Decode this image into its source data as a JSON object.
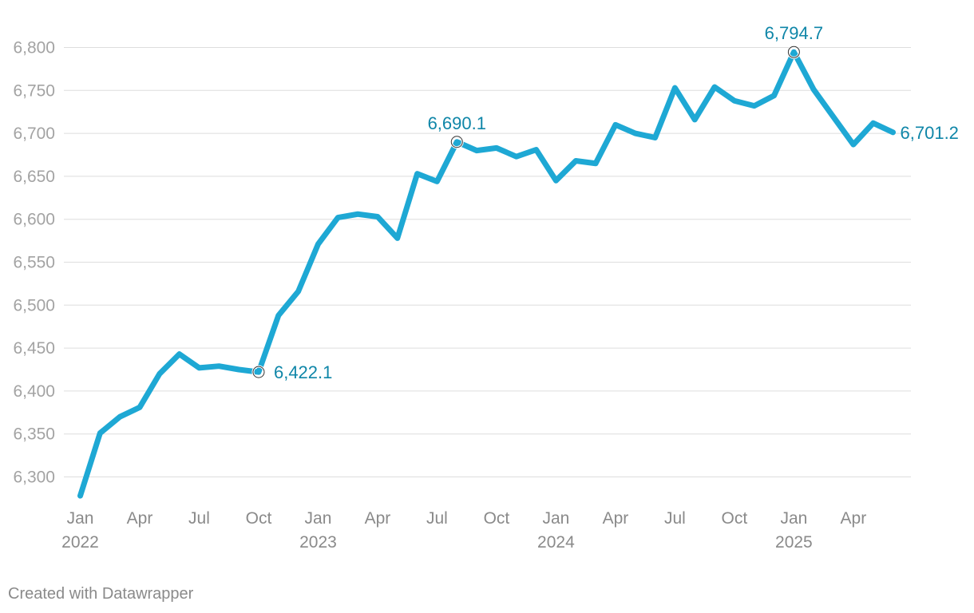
{
  "chart_data": {
    "type": "line",
    "title": "",
    "xlabel": "",
    "ylabel": "",
    "ylim": [
      6275,
      6820
    ],
    "y_ticks": [
      6300,
      6350,
      6400,
      6450,
      6500,
      6550,
      6600,
      6650,
      6700,
      6750,
      6800
    ],
    "y_tick_labels": [
      "6,300",
      "6,350",
      "6,400",
      "6,450",
      "6,500",
      "6,550",
      "6,600",
      "6,650",
      "6,700",
      "6,750",
      "6,800"
    ],
    "x_ticks": [
      {
        "date": "2022-01",
        "label": "Jan",
        "year": "2022"
      },
      {
        "date": "2022-04",
        "label": "Apr",
        "year": ""
      },
      {
        "date": "2022-07",
        "label": "Jul",
        "year": ""
      },
      {
        "date": "2022-10",
        "label": "Oct",
        "year": ""
      },
      {
        "date": "2023-01",
        "label": "Jan",
        "year": "2023"
      },
      {
        "date": "2023-04",
        "label": "Apr",
        "year": ""
      },
      {
        "date": "2023-07",
        "label": "Jul",
        "year": ""
      },
      {
        "date": "2023-10",
        "label": "Oct",
        "year": ""
      },
      {
        "date": "2024-01",
        "label": "Jan",
        "year": "2024"
      },
      {
        "date": "2024-04",
        "label": "Apr",
        "year": ""
      },
      {
        "date": "2024-07",
        "label": "Jul",
        "year": ""
      },
      {
        "date": "2024-10",
        "label": "Oct",
        "year": ""
      },
      {
        "date": "2025-01",
        "label": "Jan",
        "year": "2025"
      },
      {
        "date": "2025-04",
        "label": "Apr",
        "year": ""
      }
    ],
    "grid": true,
    "line_color": "#1ea8d4",
    "annotation_color": "#0f86a8",
    "series": [
      {
        "x": [
          "2022-01",
          "2022-02",
          "2022-03",
          "2022-04",
          "2022-05",
          "2022-06",
          "2022-07",
          "2022-08",
          "2022-09",
          "2022-10",
          "2022-11",
          "2022-12",
          "2023-01",
          "2023-02",
          "2023-03",
          "2023-04",
          "2023-05",
          "2023-06",
          "2023-07",
          "2023-08",
          "2023-09",
          "2023-10",
          "2023-11",
          "2023-12",
          "2024-01",
          "2024-02",
          "2024-03",
          "2024-04",
          "2024-05",
          "2024-06",
          "2024-07",
          "2024-08",
          "2024-09",
          "2024-10",
          "2024-11",
          "2024-12",
          "2025-01",
          "2025-02",
          "2025-03",
          "2025-04",
          "2025-05",
          "2025-06"
        ],
        "values": [
          6278,
          6351,
          6370,
          6381,
          6420,
          6443,
          6427,
          6429,
          6425,
          6422.1,
          6488,
          6516,
          6571,
          6602,
          6606,
          6603,
          6578,
          6653,
          6644,
          6690.1,
          6680,
          6683,
          6673,
          6681,
          6645,
          6668,
          6665,
          6710,
          6700,
          6695,
          6753,
          6716,
          6754,
          6738,
          6732,
          6744,
          6794.7,
          6751,
          6719,
          6687,
          6712,
          6701.2
        ]
      }
    ],
    "annotations": [
      {
        "date": "2022-10",
        "value": 6422.1,
        "label": "6,422.1",
        "marker": true,
        "position": "right"
      },
      {
        "date": "2023-08",
        "value": 6690.1,
        "label": "6,690.1",
        "marker": true,
        "position": "above"
      },
      {
        "date": "2025-01",
        "value": 6794.7,
        "label": "6,794.7",
        "marker": true,
        "position": "above"
      },
      {
        "date": "2025-06",
        "value": 6701.2,
        "label": "6,701.2",
        "marker": false,
        "position": "right"
      }
    ]
  },
  "footer": {
    "credit": "Created with Datawrapper"
  }
}
